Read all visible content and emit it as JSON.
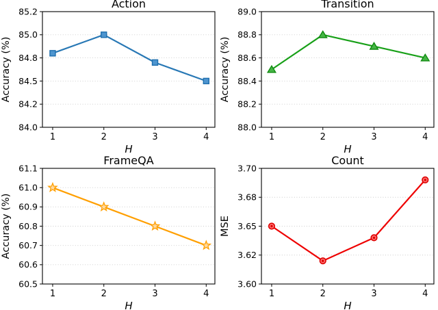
{
  "figure": {
    "background": "#ffffff",
    "grid_color": "#c9c9c9",
    "axis_color": "#000000"
  },
  "chart_data": [
    {
      "type": "line",
      "title": "Action",
      "xlabel": "H",
      "ylabel": "Accuracy (%)",
      "x": [
        1,
        2,
        3,
        4
      ],
      "values": [
        84.8,
        85.0,
        84.7,
        84.5
      ],
      "xlim": [
        0.8,
        4.17
      ],
      "ylim": [
        84.0,
        85.25
      ],
      "xticks": [
        1,
        2,
        3,
        4
      ],
      "xtick_labels": [
        "1",
        "2",
        "3",
        "4"
      ],
      "yticks": [
        84.0,
        84.25,
        84.5,
        84.75,
        85.0,
        85.25
      ],
      "ytick_labels": [
        "84.0",
        "84.2",
        "84.5",
        "84.8",
        "85.0",
        "85.2"
      ],
      "grid": "horizontal-dotted",
      "legend": "none",
      "marker": "square",
      "line_color": "#2878b5",
      "marker_edge": "#1f6fae",
      "marker_fill": "#4e95cf"
    },
    {
      "type": "line",
      "title": "Transition",
      "xlabel": "H",
      "ylabel": "Accuracy (%)",
      "x": [
        1,
        2,
        3,
        4
      ],
      "values": [
        88.5,
        88.8,
        88.7,
        88.6
      ],
      "xlim": [
        0.8,
        4.17
      ],
      "ylim": [
        88.0,
        89.0
      ],
      "xticks": [
        1,
        2,
        3,
        4
      ],
      "xtick_labels": [
        "1",
        "2",
        "3",
        "4"
      ],
      "yticks": [
        88.0,
        88.2,
        88.4,
        88.6,
        88.8,
        89.0
      ],
      "ytick_labels": [
        "88.0",
        "88.2",
        "88.4",
        "88.6",
        "88.8",
        "89.0"
      ],
      "grid": "horizontal-dotted",
      "legend": "none",
      "marker": "triangle",
      "line_color": "#18a018",
      "marker_edge": "#0f8a0f",
      "marker_fill": "#45b545"
    },
    {
      "type": "line",
      "title": "FrameQA",
      "xlabel": "H",
      "ylabel": "Accuracy (%)",
      "x": [
        1,
        2,
        3,
        4
      ],
      "values": [
        61.0,
        60.9,
        60.8,
        60.7
      ],
      "xlim": [
        0.8,
        4.17
      ],
      "ylim": [
        60.5,
        61.1
      ],
      "xticks": [
        1,
        2,
        3,
        4
      ],
      "xtick_labels": [
        "1",
        "2",
        "3",
        "4"
      ],
      "yticks": [
        60.5,
        60.6,
        60.7,
        60.8,
        60.9,
        61.0,
        61.1
      ],
      "ytick_labels": [
        "60.5",
        "60.6",
        "60.7",
        "60.8",
        "60.9",
        "61.0",
        "61.1"
      ],
      "grid": "horizontal-dotted",
      "legend": "none",
      "marker": "star",
      "line_color": "#ff9f00",
      "marker_edge": "#f59300",
      "marker_fill": "#ffd9a0"
    },
    {
      "type": "line",
      "title": "Count",
      "xlabel": "H",
      "ylabel": "MSE",
      "x": [
        1,
        2,
        3,
        4
      ],
      "values": [
        3.65,
        3.62,
        3.64,
        3.69
      ],
      "xlim": [
        0.8,
        4.17
      ],
      "ylim": [
        3.6,
        3.7
      ],
      "xticks": [
        1,
        2,
        3,
        4
      ],
      "xtick_labels": [
        "1",
        "2",
        "3",
        "4"
      ],
      "yticks": [
        3.6,
        3.625,
        3.65,
        3.675,
        3.7
      ],
      "ytick_labels": [
        "3.60",
        "3.62",
        "3.65",
        "3.68",
        "3.70"
      ],
      "grid": "horizontal-dotted",
      "legend": "none",
      "marker": "circle",
      "line_color": "#ee0000",
      "marker_edge": "#dd0000",
      "marker_fill": "#ff7070"
    }
  ]
}
